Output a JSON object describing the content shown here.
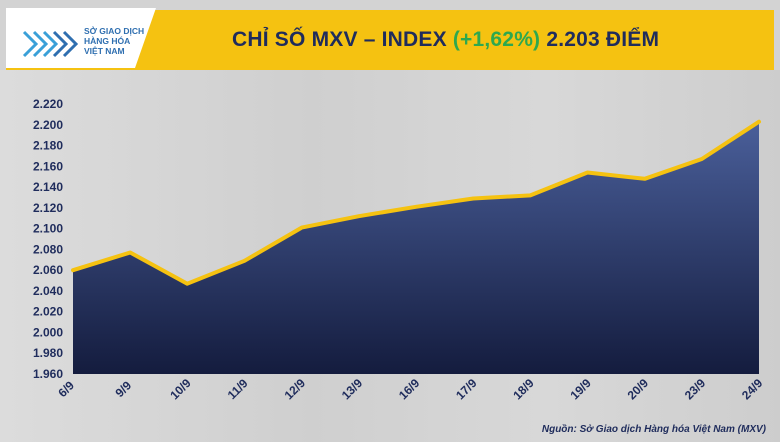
{
  "header": {
    "title_prefix": "CHỈ SỐ MXV – INDEX",
    "title_change": "(+1,62%)",
    "title_value": "2.203 ĐIỂM"
  },
  "logo": {
    "line1": "SỞ GIAO DỊCH",
    "line2": "HÀNG HÓA",
    "line3": "VIỆT NAM"
  },
  "source": "Nguồn: Sở Giao dịch Hàng hóa Việt Nam (MXV)",
  "colors": {
    "header_bg": "#f5c211",
    "line": "#f5c211",
    "area_top": "#4a5f9a",
    "area_bottom": "#141c3e",
    "text_dark": "#1f2c5c",
    "change_green": "#2ea84f"
  },
  "chart_data": {
    "type": "area",
    "title": "CHỈ SỐ MXV – INDEX (+1,62%) 2.203 ĐIỂM",
    "categories": [
      "6/9",
      "9/9",
      "10/9",
      "11/9",
      "12/9",
      "13/9",
      "16/9",
      "17/9",
      "18/9",
      "19/9",
      "20/9",
      "23/9",
      "24/9"
    ],
    "values": [
      2060,
      2077,
      2047,
      2069,
      2101,
      2112,
      2121,
      2129,
      2132,
      2154,
      2148,
      2167,
      2203
    ],
    "ylim": [
      1960,
      2220
    ],
    "yticks": [
      1960,
      1980,
      2000,
      2020,
      2040,
      2060,
      2080,
      2100,
      2120,
      2140,
      2160,
      2180,
      2200,
      2220
    ],
    "ytick_labels": [
      "1.960",
      "1.980",
      "2.000",
      "2.020",
      "2.040",
      "2.060",
      "2.080",
      "2.100",
      "2.120",
      "2.140",
      "2.160",
      "2.180",
      "2.200",
      "2.220"
    ],
    "xlabel": "",
    "ylabel": "",
    "grid": false,
    "legend": "none"
  }
}
